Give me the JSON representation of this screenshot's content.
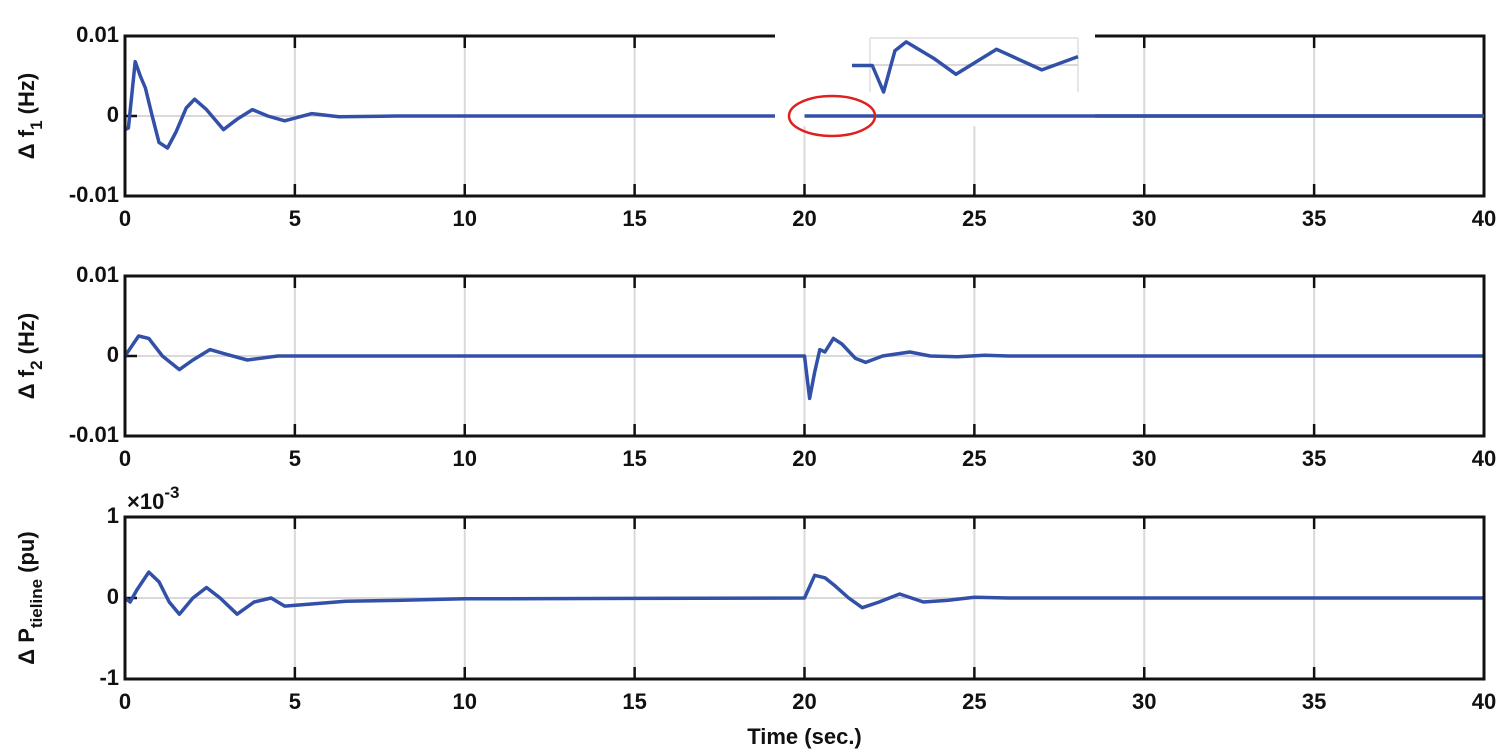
{
  "chart_data": [
    {
      "type": "line",
      "ylabel_parts": [
        "Δ f",
        "1",
        " (Hz)"
      ],
      "xlim": [
        0,
        40
      ],
      "xticks": [
        0,
        5,
        10,
        15,
        20,
        25,
        30,
        35,
        40
      ],
      "ylim": [
        -0.01,
        0.01
      ],
      "yticks": [
        -0.01,
        0,
        0.01
      ],
      "grid": true,
      "series": [
        {
          "color": "#3350a8",
          "x": [
            0,
            0.1,
            0.3,
            0.45,
            0.6,
            0.8,
            1.0,
            1.25,
            1.5,
            1.8,
            2.05,
            2.4,
            2.9,
            3.3,
            3.75,
            4.2,
            4.7,
            5.5,
            6.3,
            8,
            20,
            20.7,
            21.2,
            22,
            40
          ],
          "values": [
            -0.0017,
            -0.0015,
            0.0068,
            0.005,
            0.0035,
            0,
            -0.0033,
            -0.004,
            -0.002,
            0.001,
            0.0021,
            0.0008,
            -0.0017,
            -0.0004,
            0.0008,
            0,
            -0.0006,
            0.0003,
            -0.0001,
            0,
            0,
            -0.0002,
            0.00015,
            0,
            0
          ]
        }
      ],
      "inset": {
        "xlim": [
          20,
          25
        ],
        "ylim": [
          -0.0002,
          0.0002
        ],
        "color": "#3350a8",
        "x": [
          20,
          20.45,
          20.7,
          20.95,
          21.2,
          21.8,
          22.3,
          23.2,
          24.2,
          25
        ],
        "values": [
          0,
          0,
          -0.00018,
          0.0001,
          0.00016,
          5e-05,
          -6e-05,
          0.00011,
          -3e-05,
          6e-05
        ]
      }
    },
    {
      "type": "line",
      "ylabel_parts": [
        "Δ f",
        "2",
        " (Hz)"
      ],
      "xlim": [
        0,
        40
      ],
      "xticks": [
        0,
        5,
        10,
        15,
        20,
        25,
        30,
        35,
        40
      ],
      "ylim": [
        -0.01,
        0.01
      ],
      "yticks": [
        -0.01,
        0,
        0.01
      ],
      "grid": true,
      "series": [
        {
          "color": "#3350a8",
          "x": [
            0,
            0.4,
            0.7,
            1.1,
            1.6,
            2.0,
            2.5,
            3.0,
            3.6,
            4.5,
            20,
            20.15,
            20.3,
            20.45,
            20.6,
            20.85,
            21.1,
            21.5,
            21.8,
            22.3,
            23.1,
            23.7,
            24.5,
            25.3,
            26,
            40
          ],
          "values": [
            0,
            0.0025,
            0.0022,
            0,
            -0.0017,
            -0.0005,
            0.0008,
            0.0002,
            -0.0005,
            0,
            0,
            -0.0053,
            -0.002,
            0.0008,
            0.0005,
            0.0022,
            0.0015,
            -0.0003,
            -0.0008,
            0,
            0.0005,
            0,
            -0.0001,
            0.0001,
            0,
            0
          ]
        }
      ]
    },
    {
      "type": "line",
      "ylabel_parts": [
        "Δ P",
        "tieline",
        " (pu)"
      ],
      "xlabel": "Time (sec.)",
      "y_multiplier": "×10",
      "y_multiplier_exp": "-3",
      "xlim": [
        0,
        40
      ],
      "xticks": [
        0,
        5,
        10,
        15,
        20,
        25,
        30,
        35,
        40
      ],
      "ylim": [
        -1,
        1
      ],
      "yticks": [
        -1,
        0,
        1
      ],
      "grid": true,
      "series": [
        {
          "color": "#3350a8",
          "x": [
            0,
            0.15,
            0.35,
            0.7,
            1.0,
            1.3,
            1.6,
            2.0,
            2.4,
            2.8,
            3.3,
            3.8,
            4.3,
            4.7,
            5.3,
            6.5,
            8,
            10,
            20,
            20.3,
            20.6,
            20.9,
            21.3,
            21.7,
            22.2,
            22.8,
            23.5,
            24.2,
            25,
            26,
            40
          ],
          "values": [
            0,
            -0.05,
            0.1,
            0.32,
            0.2,
            -0.05,
            -0.2,
            0,
            0.13,
            0,
            -0.2,
            -0.05,
            0,
            -0.1,
            -0.08,
            -0.04,
            -0.03,
            -0.01,
            0,
            0.28,
            0.25,
            0.15,
            0,
            -0.12,
            -0.05,
            0.05,
            -0.05,
            -0.03,
            0.01,
            0,
            0
          ]
        }
      ]
    }
  ]
}
